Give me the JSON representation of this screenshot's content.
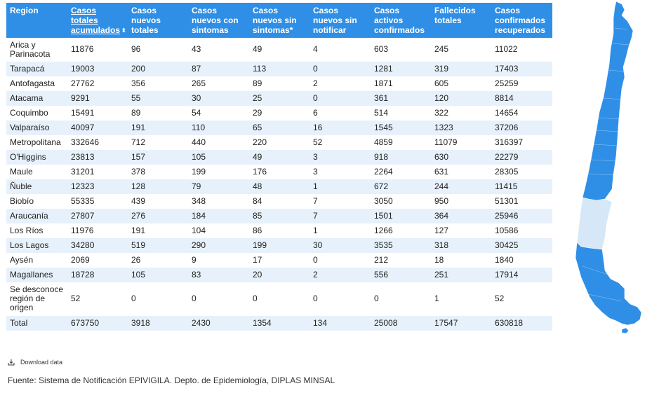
{
  "chart_data": {
    "type": "table",
    "columns": [
      "Region",
      "Casos totales acumulados",
      "Casos nuevos totales",
      "Casos nuevos con sintomas",
      "Casos nuevos sin sintomas*",
      "Casos nuevos sin notificar",
      "Casos activos confirmados",
      "Fallecidos totales",
      "Casos confirmados recuperados"
    ],
    "rows": [
      [
        "Arica y Parinacota",
        "11876",
        "96",
        "43",
        "49",
        "4",
        "603",
        "245",
        "11022"
      ],
      [
        "Tarapacá",
        "19003",
        "200",
        "87",
        "113",
        "0",
        "1281",
        "319",
        "17403"
      ],
      [
        "Antofagasta",
        "27762",
        "356",
        "265",
        "89",
        "2",
        "1871",
        "605",
        "25259"
      ],
      [
        "Atacama",
        "9291",
        "55",
        "30",
        "25",
        "0",
        "361",
        "120",
        "8814"
      ],
      [
        "Coquimbo",
        "15491",
        "89",
        "54",
        "29",
        "6",
        "514",
        "322",
        "14654"
      ],
      [
        "Valparaíso",
        "40097",
        "191",
        "110",
        "65",
        "16",
        "1545",
        "1323",
        "37206"
      ],
      [
        "Metropolitana",
        "332646",
        "712",
        "440",
        "220",
        "52",
        "4859",
        "11079",
        "316397"
      ],
      [
        "O'Higgins",
        "23813",
        "157",
        "105",
        "49",
        "3",
        "918",
        "630",
        "22279"
      ],
      [
        "Maule",
        "31201",
        "378",
        "199",
        "176",
        "3",
        "2264",
        "631",
        "28305"
      ],
      [
        "Ñuble",
        "12323",
        "128",
        "79",
        "48",
        "1",
        "672",
        "244",
        "11415"
      ],
      [
        "Biobío",
        "55335",
        "439",
        "348",
        "84",
        "7",
        "3050",
        "950",
        "51301"
      ],
      [
        "Araucanía",
        "27807",
        "276",
        "184",
        "85",
        "7",
        "1501",
        "364",
        "25946"
      ],
      [
        "Los Ríos",
        "11976",
        "191",
        "104",
        "86",
        "1",
        "1266",
        "127",
        "10586"
      ],
      [
        "Los Lagos",
        "34280",
        "519",
        "290",
        "199",
        "30",
        "3535",
        "318",
        "30425"
      ],
      [
        "Aysén",
        "2069",
        "26",
        "9",
        "17",
        "0",
        "212",
        "18",
        "1840"
      ],
      [
        "Magallanes",
        "18728",
        "105",
        "83",
        "20",
        "2",
        "556",
        "251",
        "17914"
      ],
      [
        "Se desconoce región de origen",
        "52",
        "0",
        "0",
        "0",
        "0",
        "0",
        "1",
        "52"
      ],
      [
        "Total",
        "673750",
        "3918",
        "2430",
        "1354",
        "134",
        "25008",
        "17547",
        "630818"
      ]
    ],
    "sorted_column": 1,
    "header_color": "#2f8fe6",
    "stripe_color": "#e7f1fb",
    "map": {
      "highlighted_region": "Araucanía",
      "base_color": "#2f8fe6",
      "highlight_color": "#d6e8f7"
    }
  },
  "footer": {
    "download_label": "Download data",
    "download_icon": "download-icon",
    "source": "Fuente: Sistema de Notificación EPIVIGILA. Depto. de Epidemiología, DIPLAS MINSAL"
  }
}
